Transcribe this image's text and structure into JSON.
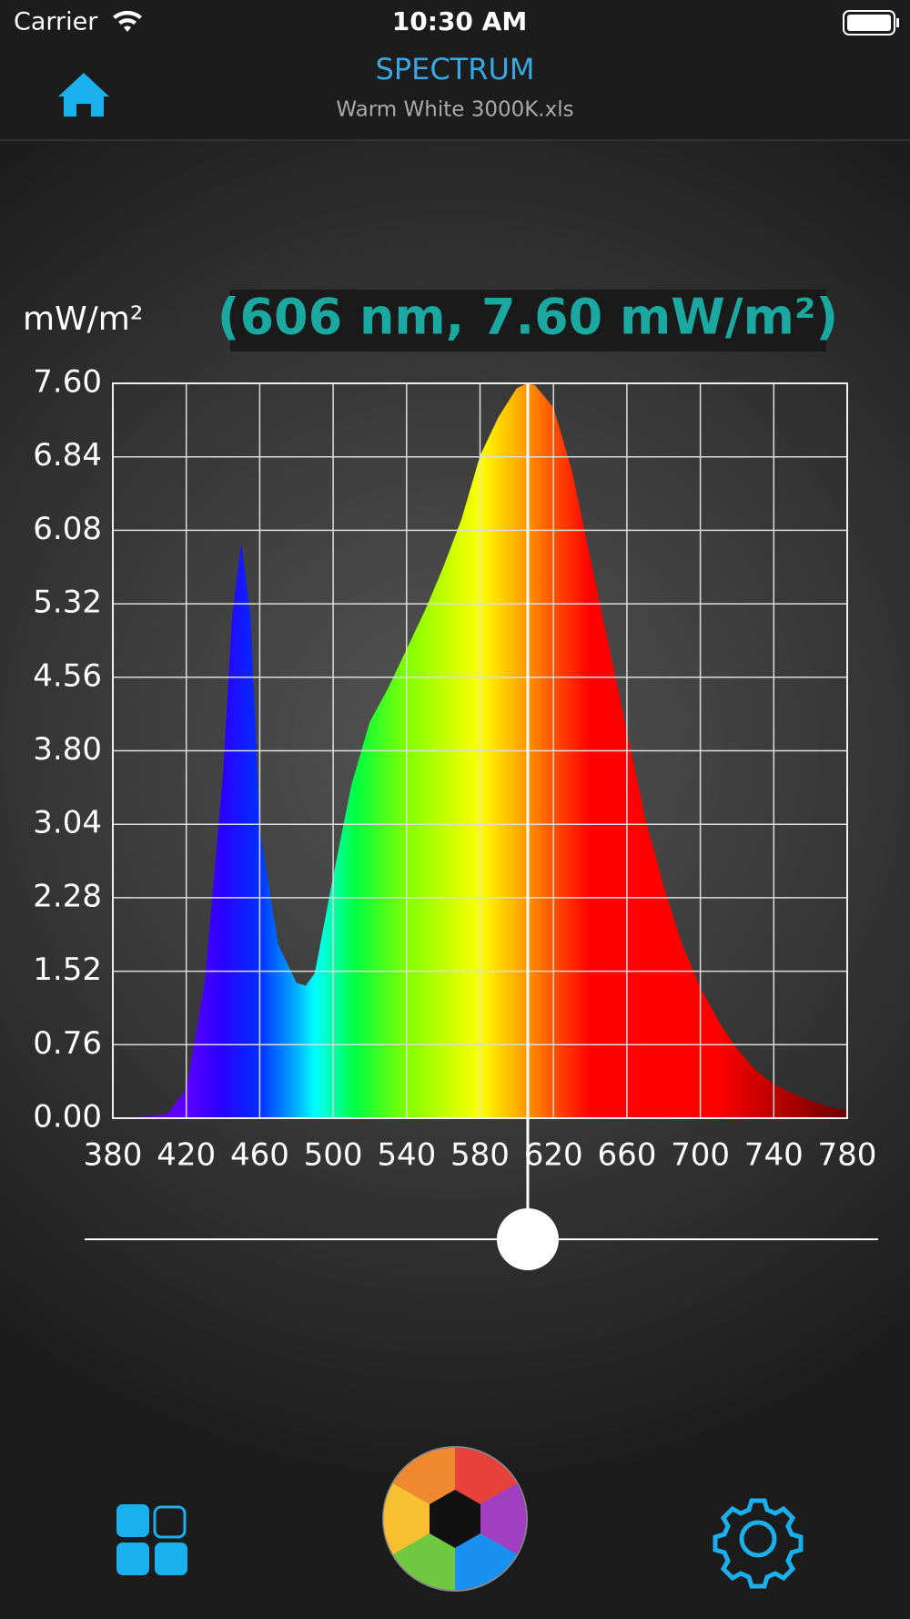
{
  "status_bar": {
    "carrier": "Carrier",
    "time": "10:30 AM"
  },
  "nav_bar": {
    "title": "SPECTRUM",
    "subtitle": "Warm White 3000K.xls"
  },
  "chart_data": {
    "type": "area",
    "y_axis_label": "mW/m²",
    "readout": "(606 nm, 7.60 mW/m²)",
    "cursor_x": 606,
    "x": [
      380,
      390,
      400,
      410,
      420,
      430,
      440,
      445,
      450,
      455,
      460,
      470,
      480,
      485,
      490,
      500,
      510,
      520,
      530,
      540,
      550,
      560,
      570,
      580,
      590,
      600,
      606,
      610,
      620,
      630,
      640,
      650,
      660,
      670,
      680,
      690,
      700,
      710,
      720,
      730,
      740,
      750,
      760,
      770,
      780
    ],
    "values": [
      0,
      0.01,
      0.02,
      0.05,
      0.3,
      1.4,
      3.55,
      5.2,
      5.95,
      5.2,
      3.0,
      1.8,
      1.4,
      1.37,
      1.5,
      2.5,
      3.45,
      4.1,
      4.45,
      4.85,
      5.25,
      5.7,
      6.2,
      6.85,
      7.25,
      7.55,
      7.6,
      7.58,
      7.35,
      6.7,
      5.8,
      4.9,
      4.0,
      3.1,
      2.4,
      1.8,
      1.35,
      1.0,
      0.72,
      0.5,
      0.35,
      0.26,
      0.18,
      0.12,
      0.08
    ],
    "xlim": [
      380,
      780
    ],
    "ylim": [
      0,
      7.6
    ],
    "xticks": [
      380,
      420,
      460,
      500,
      540,
      580,
      620,
      660,
      700,
      740,
      780
    ],
    "yticks": [
      {
        "value": 0,
        "label": "0.00"
      },
      0.76,
      1.52,
      2.28,
      3.04,
      {
        "value": 3.8,
        "label": "3.80"
      },
      4.56,
      5.32,
      6.08,
      6.84,
      {
        "value": 7.6,
        "label": "7.60"
      }
    ],
    "grid": true
  }
}
